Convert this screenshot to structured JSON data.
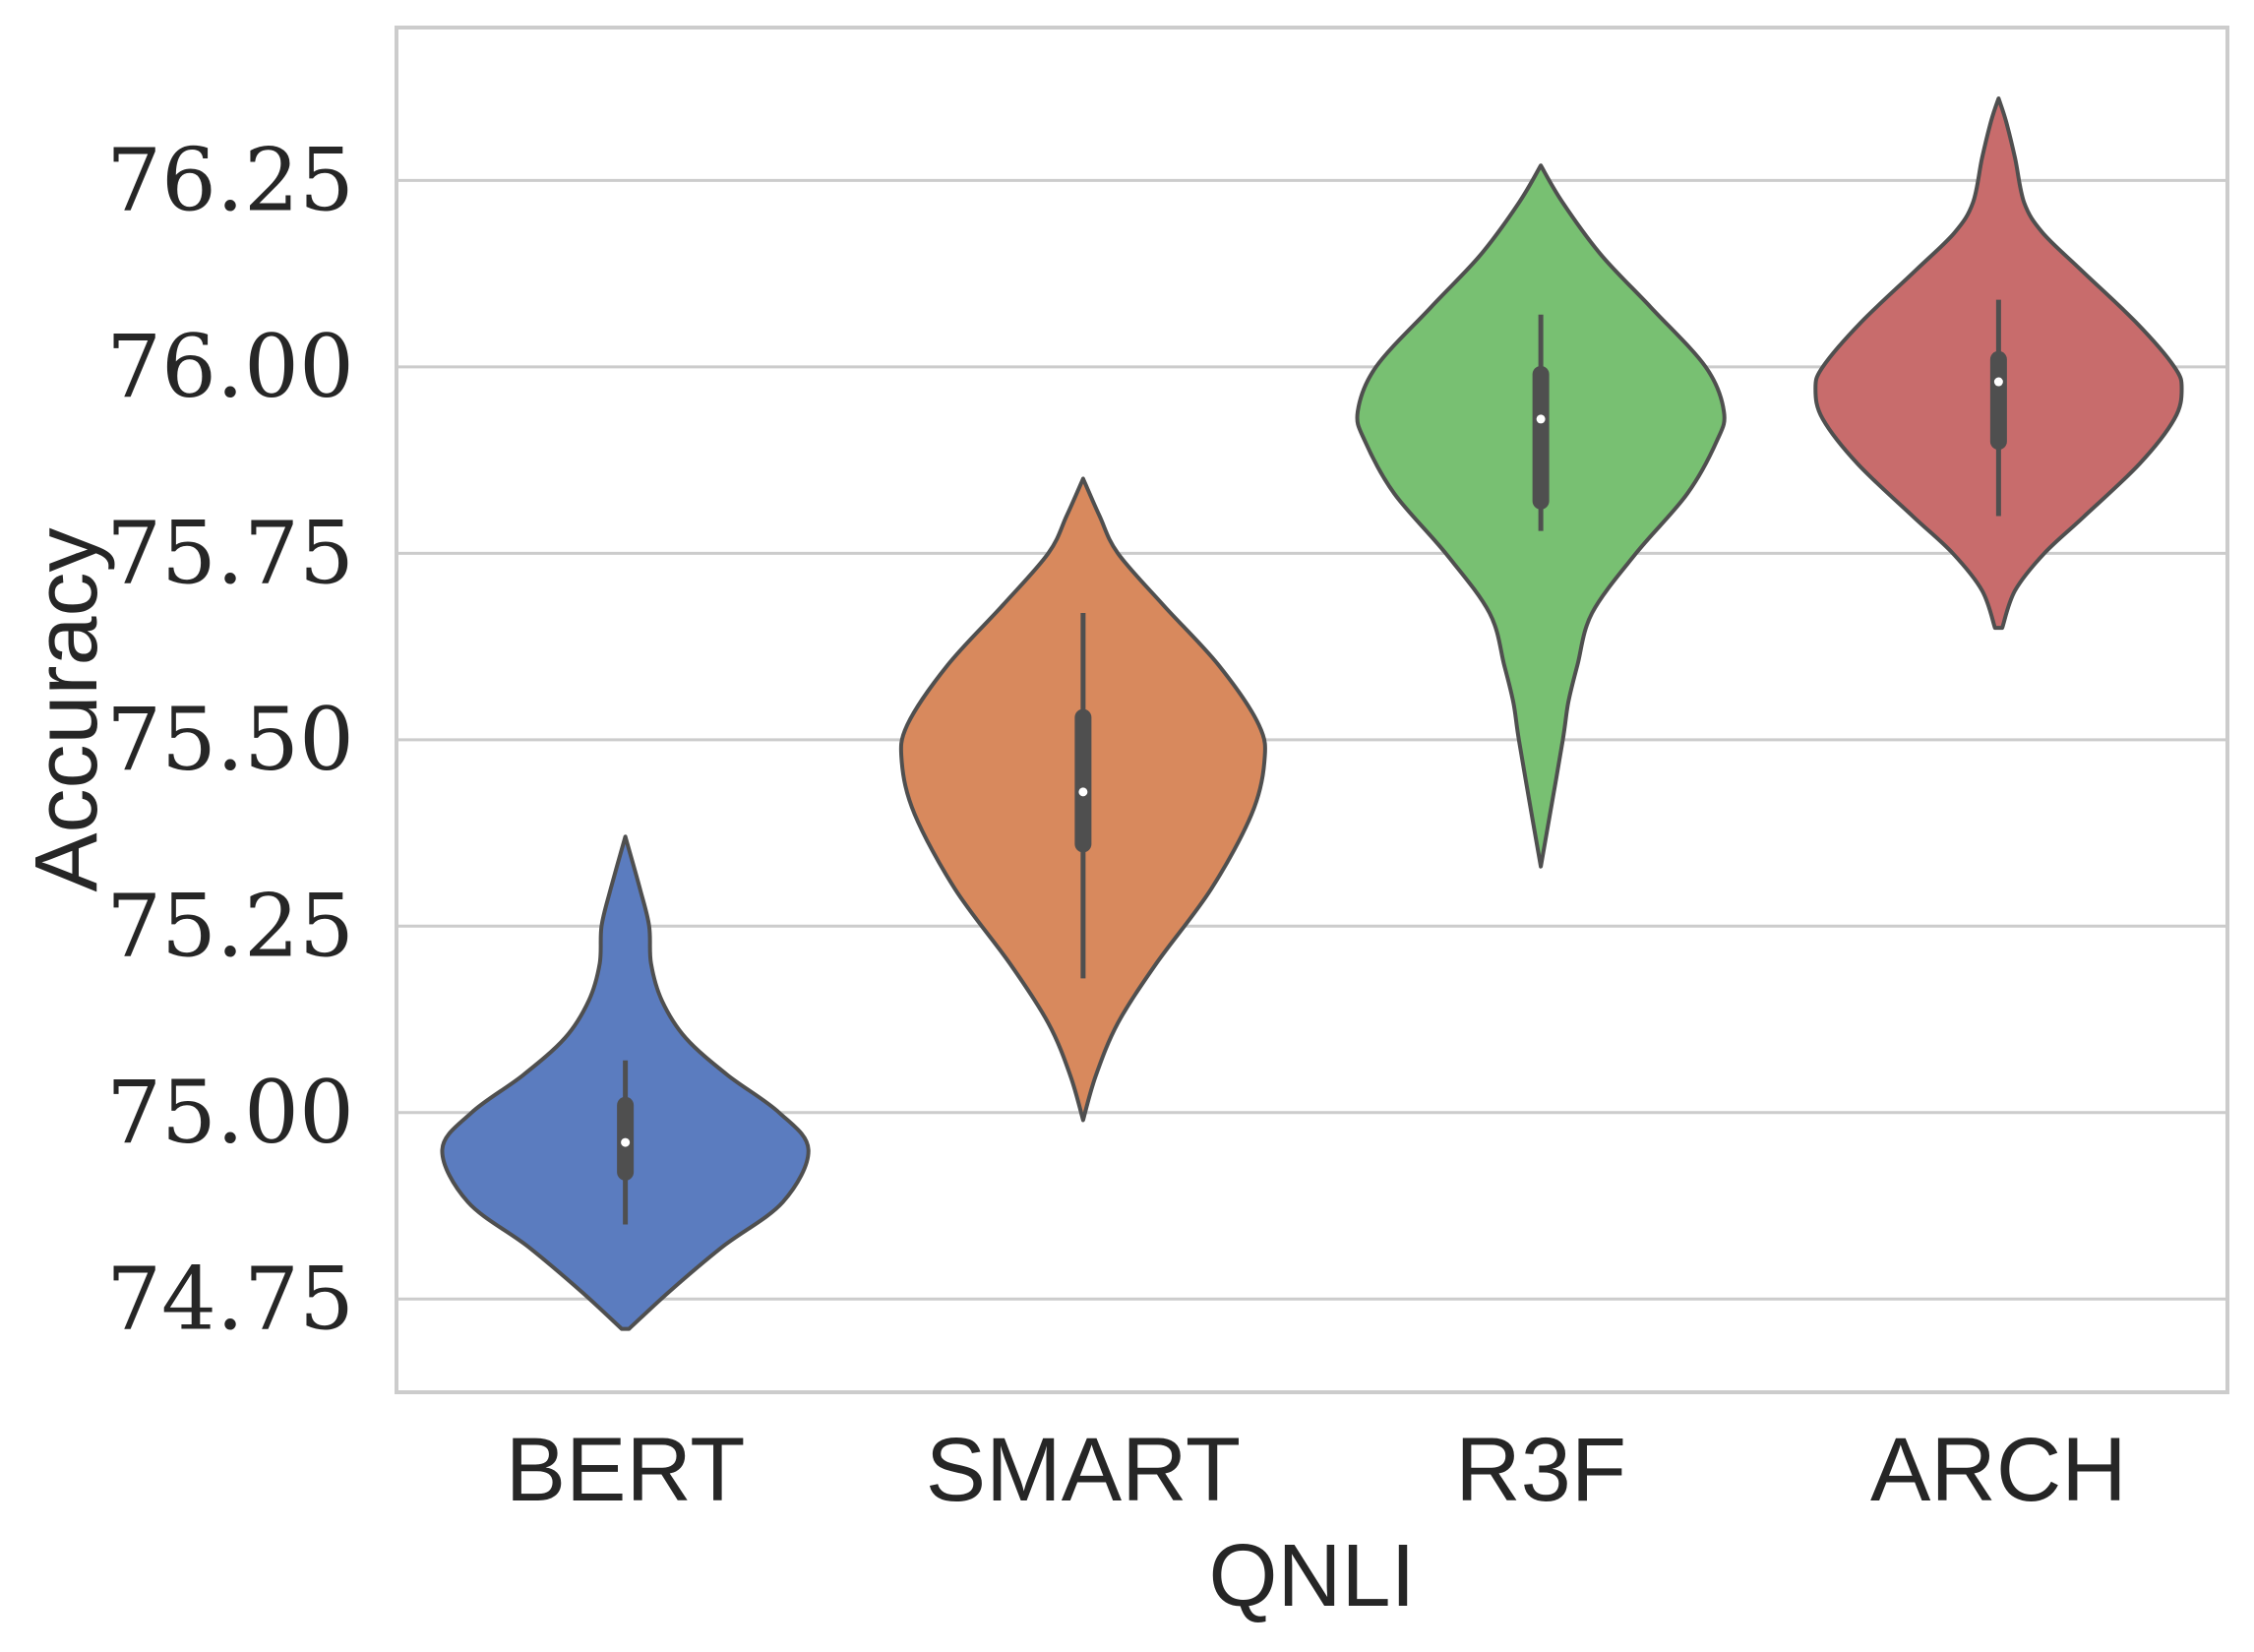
{
  "chart_data": {
    "type": "violin",
    "title": "",
    "xlabel": "QNLI",
    "ylabel": "Accuracy",
    "ylim": [
      74.625,
      76.455
    ],
    "yticks": [
      "74.75",
      "75.00",
      "75.25",
      "75.50",
      "75.75",
      "76.00",
      "76.25"
    ],
    "grid": "horizontal",
    "categories": [
      "BERT",
      "SMART",
      "R3F",
      "ARCH"
    ],
    "series": [
      {
        "category": "BERT",
        "color": "#5b7cbf",
        "min": 74.71,
        "max": 75.37,
        "whisker_low": 74.85,
        "whisker_high": 75.07,
        "q1": 74.92,
        "median": 74.96,
        "q3": 75.01,
        "density": [
          [
            74.71,
            0.02
          ],
          [
            74.76,
            0.24
          ],
          [
            74.82,
            0.53
          ],
          [
            74.88,
            0.86
          ],
          [
            74.95,
            1.0
          ],
          [
            75.0,
            0.84
          ],
          [
            75.05,
            0.56
          ],
          [
            75.1,
            0.33
          ],
          [
            75.15,
            0.2
          ],
          [
            75.2,
            0.14
          ],
          [
            75.25,
            0.13
          ],
          [
            75.3,
            0.08
          ],
          [
            75.37,
            0.0
          ]
        ]
      },
      {
        "category": "SMART",
        "color": "#d8895d",
        "min": 74.99,
        "max": 75.85,
        "whisker_low": 75.18,
        "whisker_high": 75.67,
        "q1": 75.36,
        "median": 75.43,
        "q3": 75.53,
        "density": [
          [
            74.99,
            0.0
          ],
          [
            75.05,
            0.07
          ],
          [
            75.12,
            0.19
          ],
          [
            75.2,
            0.4
          ],
          [
            75.3,
            0.7
          ],
          [
            75.4,
            0.92
          ],
          [
            75.47,
            0.99
          ],
          [
            75.52,
            0.96
          ],
          [
            75.6,
            0.74
          ],
          [
            75.68,
            0.44
          ],
          [
            75.75,
            0.19
          ],
          [
            75.8,
            0.09
          ],
          [
            75.85,
            0.0
          ]
        ]
      },
      {
        "category": "R3F",
        "color": "#78c072",
        "min": 75.33,
        "max": 76.27,
        "whisker_low": 75.78,
        "whisker_high": 76.07,
        "q1": 75.82,
        "median": 75.93,
        "q3": 75.99,
        "density": [
          [
            75.33,
            0.0
          ],
          [
            75.4,
            0.05
          ],
          [
            75.5,
            0.12
          ],
          [
            75.55,
            0.15
          ],
          [
            75.6,
            0.2
          ],
          [
            75.67,
            0.28
          ],
          [
            75.75,
            0.52
          ],
          [
            75.83,
            0.8
          ],
          [
            75.9,
            0.96
          ],
          [
            75.94,
            1.0
          ],
          [
            76.0,
            0.9
          ],
          [
            76.08,
            0.6
          ],
          [
            76.15,
            0.33
          ],
          [
            76.22,
            0.12
          ],
          [
            76.27,
            0.0
          ]
        ]
      },
      {
        "category": "ARCH",
        "color": "#c86c6c",
        "min": 75.65,
        "max": 76.36,
        "whisker_low": 75.8,
        "whisker_high": 76.09,
        "q1": 75.9,
        "median": 75.98,
        "q3": 76.01,
        "density": [
          [
            75.65,
            0.02
          ],
          [
            75.7,
            0.09
          ],
          [
            75.75,
            0.25
          ],
          [
            75.8,
            0.47
          ],
          [
            75.87,
            0.77
          ],
          [
            75.93,
            0.96
          ],
          [
            75.97,
            1.0
          ],
          [
            76.0,
            0.96
          ],
          [
            76.06,
            0.75
          ],
          [
            76.13,
            0.45
          ],
          [
            76.18,
            0.24
          ],
          [
            76.22,
            0.14
          ],
          [
            76.28,
            0.09
          ],
          [
            76.33,
            0.04
          ],
          [
            76.36,
            0.0
          ]
        ]
      }
    ]
  }
}
